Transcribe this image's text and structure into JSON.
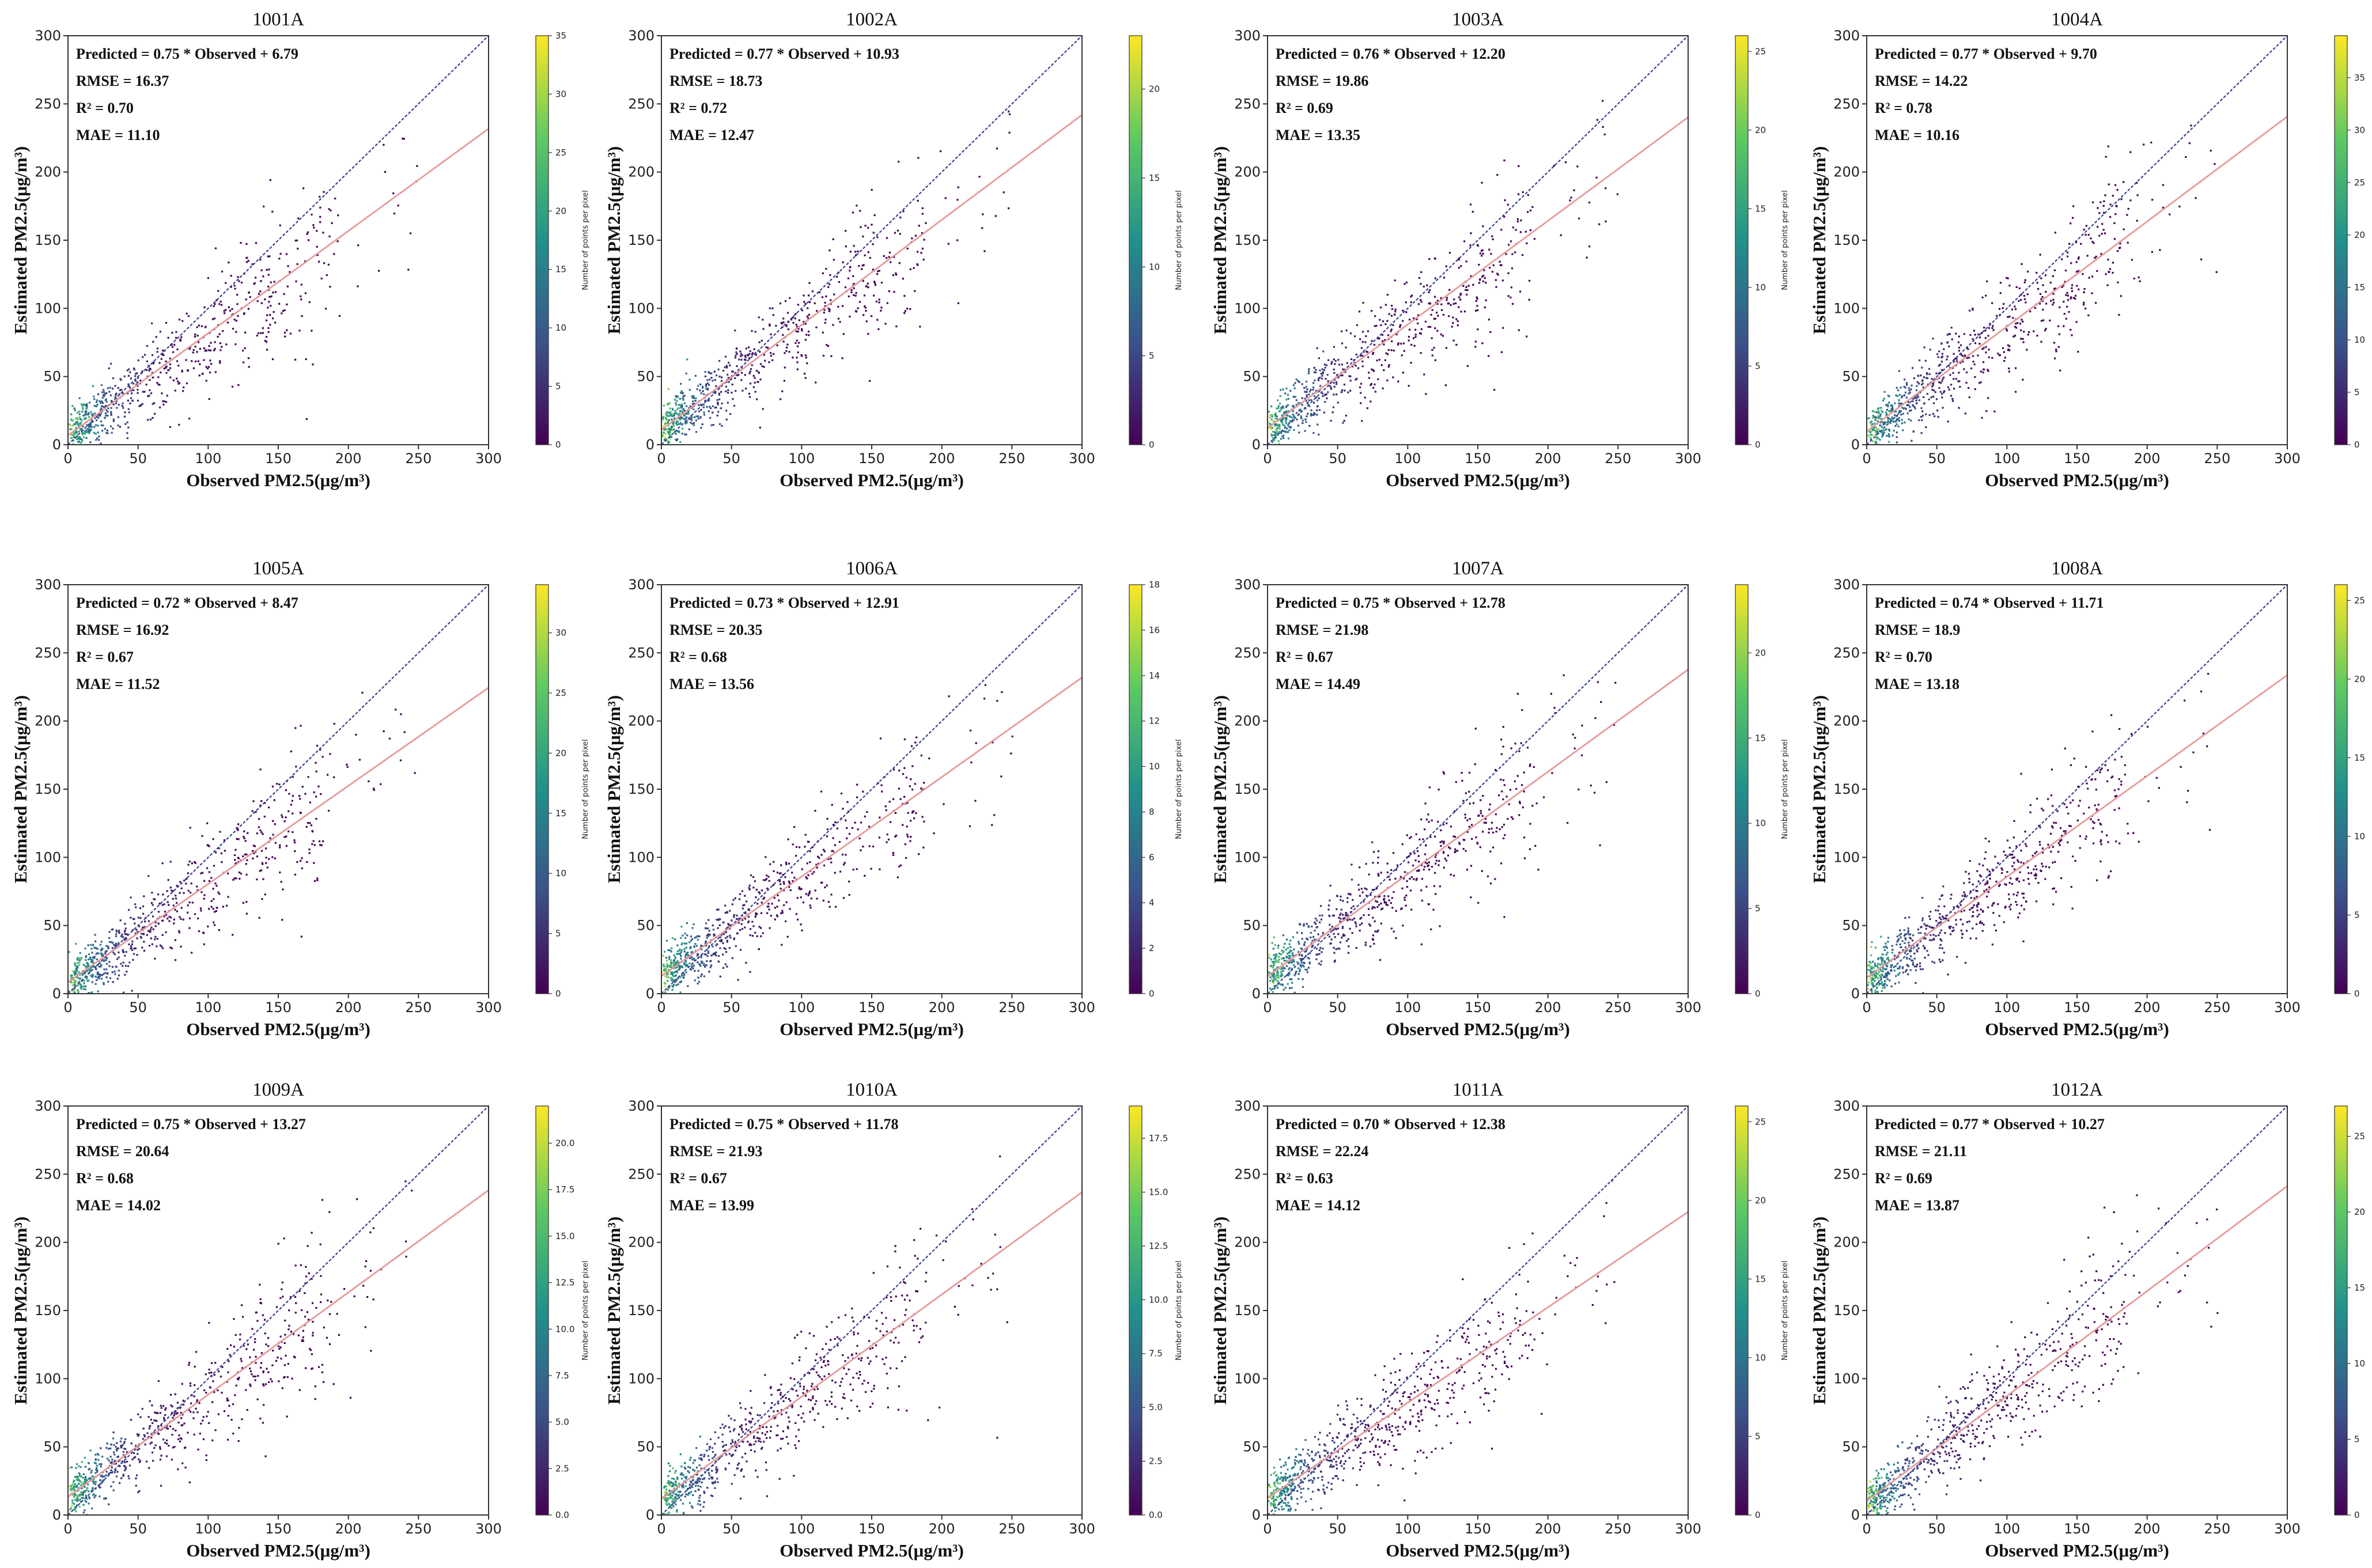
{
  "figure": {
    "x_unit": "(μg/m³)",
    "y_unit": "(μg/m³)"
  },
  "colors": {
    "identity_line": "#3b3f8f",
    "fit_line": "#e59a9a",
    "axes": "#333333",
    "viridis": [
      "#440154",
      "#3b528b",
      "#21918c",
      "#5ec962",
      "#fde725"
    ]
  },
  "chart_data": [
    {
      "type": "scatter",
      "title": "1001A",
      "xlabel": "Observed PM2.5(μg/m³)",
      "ylabel": "Estimated PM2.5(μg/m³)",
      "xlim": [
        0,
        300
      ],
      "ylim": [
        0,
        300
      ],
      "xticks": [
        "0",
        "50",
        "100",
        "150",
        "200",
        "250",
        "300"
      ],
      "yticks": [
        "0",
        "50",
        "100",
        "150",
        "200",
        "250",
        "300"
      ],
      "slope": 0.75,
      "intercept": 6.79,
      "stats": [
        "Predicted = 0.75 * Observed + 6.79",
        "RMSE = 16.37",
        "R² = 0.70",
        "MAE = 11.10"
      ],
      "colorbar": {
        "label": "Number of points per pixel",
        "max": 35,
        "ticks": [
          "0",
          "5",
          "10",
          "15",
          "20",
          "25",
          "30",
          "35"
        ]
      }
    },
    {
      "type": "scatter",
      "title": "1002A",
      "xlabel": "Observed PM2.5(μg/m³)",
      "ylabel": "Estimated PM2.5(μg/m³)",
      "xlim": [
        0,
        300
      ],
      "ylim": [
        0,
        300
      ],
      "xticks": [
        "0",
        "50",
        "100",
        "150",
        "200",
        "250",
        "300"
      ],
      "yticks": [
        "0",
        "50",
        "100",
        "150",
        "200",
        "250",
        "300"
      ],
      "slope": 0.77,
      "intercept": 10.93,
      "stats": [
        "Predicted = 0.77 * Observed + 10.93",
        "RMSE = 18.73",
        "R² = 0.72",
        "MAE = 12.47"
      ],
      "colorbar": {
        "label": "Number of points per pixel",
        "max": 23,
        "ticks": [
          "0",
          "5",
          "10",
          "15",
          "20"
        ]
      }
    },
    {
      "type": "scatter",
      "title": "1003A",
      "xlabel": "Observed PM2.5(μg/m³)",
      "ylabel": "Estimated PM2.5(μg/m³)",
      "xlim": [
        0,
        300
      ],
      "ylim": [
        0,
        300
      ],
      "xticks": [
        "0",
        "50",
        "100",
        "150",
        "200",
        "250",
        "300"
      ],
      "yticks": [
        "0",
        "50",
        "100",
        "150",
        "200",
        "250",
        "300"
      ],
      "slope": 0.76,
      "intercept": 12.2,
      "stats": [
        "Predicted = 0.76 * Observed + 12.20",
        "RMSE = 19.86",
        "R² = 0.69",
        "MAE = 13.35"
      ],
      "colorbar": {
        "label": "Number of points per pixel",
        "max": 26,
        "ticks": [
          "0",
          "5",
          "10",
          "15",
          "20",
          "25"
        ]
      }
    },
    {
      "type": "scatter",
      "title": "1004A",
      "xlabel": "Observed PM2.5(μg/m³)",
      "ylabel": "Estimated PM2.5(μg/m³)",
      "xlim": [
        0,
        300
      ],
      "ylim": [
        0,
        300
      ],
      "xticks": [
        "0",
        "50",
        "100",
        "150",
        "200",
        "250",
        "300"
      ],
      "yticks": [
        "0",
        "50",
        "100",
        "150",
        "200",
        "250",
        "300"
      ],
      "slope": 0.77,
      "intercept": 9.7,
      "stats": [
        "Predicted = 0.77 * Observed + 9.70",
        "RMSE = 14.22",
        "R² = 0.78",
        "MAE = 10.16"
      ],
      "colorbar": {
        "label": "Number of points per pixel",
        "max": 39,
        "ticks": [
          "0",
          "5",
          "10",
          "15",
          "20",
          "25",
          "30",
          "35"
        ]
      }
    },
    {
      "type": "scatter",
      "title": "1005A",
      "xlabel": "Observed PM2.5(μg/m³)",
      "ylabel": "Estimated PM2.5(μg/m³)",
      "xlim": [
        0,
        300
      ],
      "ylim": [
        0,
        300
      ],
      "xticks": [
        "0",
        "50",
        "100",
        "150",
        "200",
        "250",
        "300"
      ],
      "yticks": [
        "0",
        "50",
        "100",
        "150",
        "200",
        "250",
        "300"
      ],
      "slope": 0.72,
      "intercept": 8.47,
      "stats": [
        "Predicted = 0.72 * Observed + 8.47",
        "RMSE = 16.92",
        "R² = 0.67",
        "MAE = 11.52"
      ],
      "colorbar": {
        "label": "Number of points per pixel",
        "max": 34,
        "ticks": [
          "0",
          "5",
          "10",
          "15",
          "20",
          "25",
          "30"
        ]
      }
    },
    {
      "type": "scatter",
      "title": "1006A",
      "xlabel": "Observed PM2.5(μg/m³)",
      "ylabel": "Estimated PM2.5(μg/m³)",
      "xlim": [
        0,
        300
      ],
      "ylim": [
        0,
        300
      ],
      "xticks": [
        "0",
        "50",
        "100",
        "150",
        "200",
        "250",
        "300"
      ],
      "yticks": [
        "0",
        "50",
        "100",
        "150",
        "200",
        "250",
        "300"
      ],
      "slope": 0.73,
      "intercept": 12.91,
      "stats": [
        "Predicted = 0.73 * Observed + 12.91",
        "RMSE = 20.35",
        "R² = 0.68",
        "MAE = 13.56"
      ],
      "colorbar": {
        "label": "Number of points per pixel",
        "max": 18,
        "ticks": [
          "0",
          "2",
          "4",
          "6",
          "8",
          "10",
          "12",
          "14",
          "16",
          "18"
        ]
      }
    },
    {
      "type": "scatter",
      "title": "1007A",
      "xlabel": "Observed PM2.5(μg/m³)",
      "ylabel": "Estimated PM2.5(μg/m³)",
      "xlim": [
        0,
        300
      ],
      "ylim": [
        0,
        300
      ],
      "xticks": [
        "0",
        "50",
        "100",
        "150",
        "200",
        "250",
        "300"
      ],
      "yticks": [
        "0",
        "50",
        "100",
        "150",
        "200",
        "250",
        "300"
      ],
      "slope": 0.75,
      "intercept": 12.78,
      "stats": [
        "Predicted = 0.75 * Observed + 12.78",
        "RMSE = 21.98",
        "R² = 0.67",
        "MAE = 14.49"
      ],
      "colorbar": {
        "label": "Number of points per pixel",
        "max": 24,
        "ticks": [
          "0",
          "5",
          "10",
          "15",
          "20"
        ]
      }
    },
    {
      "type": "scatter",
      "title": "1008A",
      "xlabel": "Observed PM2.5(μg/m³)",
      "ylabel": "Estimated PM2.5(μg/m³)",
      "xlim": [
        0,
        300
      ],
      "ylim": [
        0,
        300
      ],
      "xticks": [
        "0",
        "50",
        "100",
        "150",
        "200",
        "250",
        "300"
      ],
      "yticks": [
        "0",
        "50",
        "100",
        "150",
        "200",
        "250",
        "300"
      ],
      "slope": 0.74,
      "intercept": 11.71,
      "stats": [
        "Predicted = 0.74 * Observed + 11.71",
        "RMSE = 18.9",
        "R² = 0.70",
        "MAE = 13.18"
      ],
      "colorbar": {
        "label": "Number of points per pixel",
        "max": 26,
        "ticks": [
          "0",
          "5",
          "10",
          "15",
          "20",
          "25"
        ]
      }
    },
    {
      "type": "scatter",
      "title": "1009A",
      "xlabel": "Observed PM2.5(μg/m³)",
      "ylabel": "Estimated PM2.5(μg/m³)",
      "xlim": [
        0,
        300
      ],
      "ylim": [
        0,
        300
      ],
      "xticks": [
        "0",
        "50",
        "100",
        "150",
        "200",
        "250",
        "300"
      ],
      "yticks": [
        "0",
        "50",
        "100",
        "150",
        "200",
        "250",
        "300"
      ],
      "slope": 0.75,
      "intercept": 13.27,
      "stats": [
        "Predicted = 0.75 * Observed + 13.27",
        "RMSE = 20.64",
        "R² = 0.68",
        "MAE = 14.02"
      ],
      "colorbar": {
        "label": "Number of points per pixel",
        "max": 22,
        "ticks": [
          "0.0",
          "2.5",
          "5.0",
          "7.5",
          "10.0",
          "12.5",
          "15.0",
          "17.5",
          "20.0"
        ]
      }
    },
    {
      "type": "scatter",
      "title": "1010A",
      "xlabel": "Observed PM2.5(μg/m³)",
      "ylabel": "Estimated PM2.5(μg/m³)",
      "xlim": [
        0,
        300
      ],
      "ylim": [
        0,
        300
      ],
      "xticks": [
        "0",
        "50",
        "100",
        "150",
        "200",
        "250",
        "300"
      ],
      "yticks": [
        "0",
        "50",
        "100",
        "150",
        "200",
        "250",
        "300"
      ],
      "slope": 0.75,
      "intercept": 11.78,
      "stats": [
        "Predicted = 0.75 * Observed + 11.78",
        "RMSE = 21.93",
        "R² = 0.67",
        "MAE = 13.99"
      ],
      "colorbar": {
        "label": "Number of points per pixel",
        "max": 19,
        "ticks": [
          "0.0",
          "2.5",
          "5.0",
          "7.5",
          "10.0",
          "12.5",
          "15.0",
          "17.5"
        ]
      }
    },
    {
      "type": "scatter",
      "title": "1011A",
      "xlabel": "Observed PM2.5(μg/m³)",
      "ylabel": "Estimated PM2.5(μg/m³)",
      "xlim": [
        0,
        300
      ],
      "ylim": [
        0,
        300
      ],
      "xticks": [
        "0",
        "50",
        "100",
        "150",
        "200",
        "250",
        "300"
      ],
      "yticks": [
        "0",
        "50",
        "100",
        "150",
        "200",
        "250",
        "300"
      ],
      "slope": 0.7,
      "intercept": 12.38,
      "stats": [
        "Predicted = 0.70 * Observed + 12.38",
        "RMSE = 22.24",
        "R² = 0.63",
        "MAE = 14.12"
      ],
      "colorbar": {
        "label": "Number of points per pixel",
        "max": 26,
        "ticks": [
          "0",
          "5",
          "10",
          "15",
          "20",
          "25"
        ]
      }
    },
    {
      "type": "scatter",
      "title": "1012A",
      "xlabel": "Observed PM2.5(μg/m³)",
      "ylabel": "Estimated PM2.5(μg/m³)",
      "xlim": [
        0,
        300
      ],
      "ylim": [
        0,
        300
      ],
      "xticks": [
        "0",
        "50",
        "100",
        "150",
        "200",
        "250",
        "300"
      ],
      "yticks": [
        "0",
        "50",
        "100",
        "150",
        "200",
        "250",
        "300"
      ],
      "slope": 0.77,
      "intercept": 10.27,
      "stats": [
        "Predicted = 0.77 * Observed + 10.27",
        "RMSE = 21.11",
        "R² = 0.69",
        "MAE = 13.87"
      ],
      "colorbar": {
        "label": "Number of points per pixel",
        "max": 27,
        "ticks": [
          "0",
          "5",
          "10",
          "15",
          "20",
          "25"
        ]
      }
    }
  ]
}
